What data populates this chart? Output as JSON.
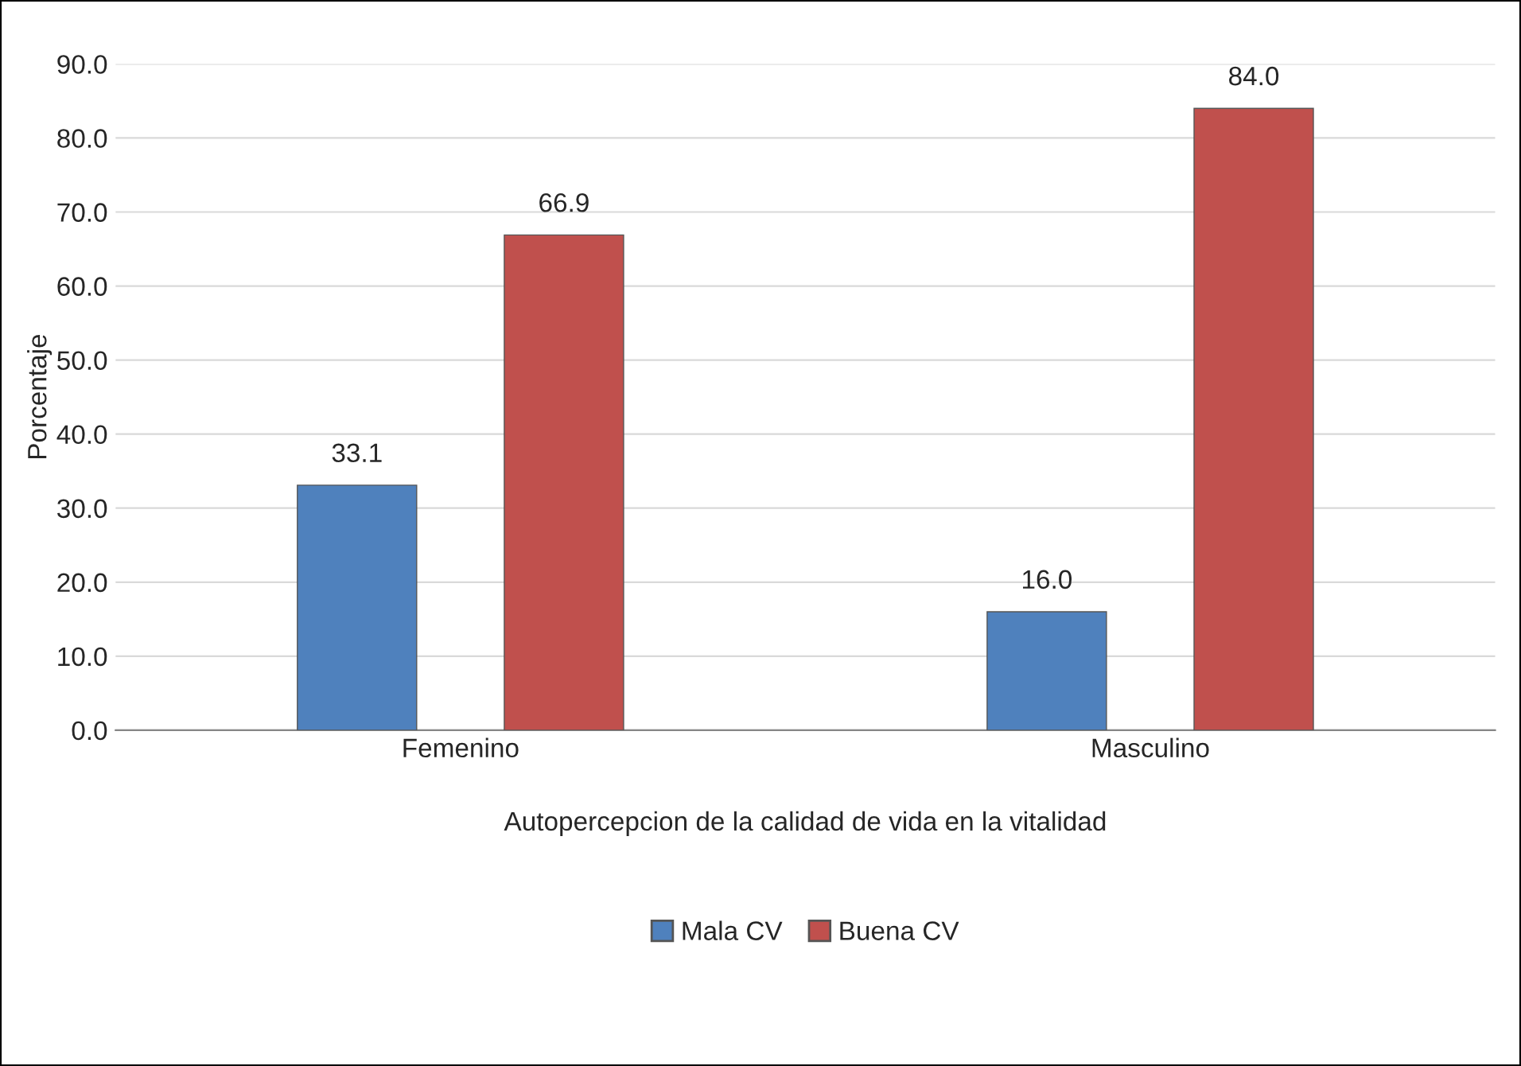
{
  "chart_data": {
    "type": "bar",
    "categories": [
      "Femenino",
      "Masculino"
    ],
    "series": [
      {
        "name": "Mala CV",
        "color": "#4f81bd",
        "values": [
          33.1,
          16.0
        ],
        "value_labels": [
          "33.1",
          "16.0"
        ]
      },
      {
        "name": "Buena CV",
        "color": "#c0504d",
        "values": [
          66.9,
          84.0
        ],
        "value_labels": [
          "66.9",
          "84.0"
        ]
      }
    ],
    "xlabel": "Autopercepcion de la calidad de vida en la vitalidad",
    "ylabel": "Porcentaje",
    "ylim": [
      0,
      90
    ],
    "yticks": [
      {
        "value": 0,
        "label": "0.0"
      },
      {
        "value": 10,
        "label": "10.0"
      },
      {
        "value": 20,
        "label": "20.0"
      },
      {
        "value": 30,
        "label": "30.0"
      },
      {
        "value": 40,
        "label": "40.0"
      },
      {
        "value": 50,
        "label": "50.0"
      },
      {
        "value": 60,
        "label": "60.0"
      },
      {
        "value": 70,
        "label": "70.0"
      },
      {
        "value": 80,
        "label": "80.0"
      },
      {
        "value": 90,
        "label": "90.0"
      }
    ],
    "grid": "y",
    "legend": "bottom"
  }
}
